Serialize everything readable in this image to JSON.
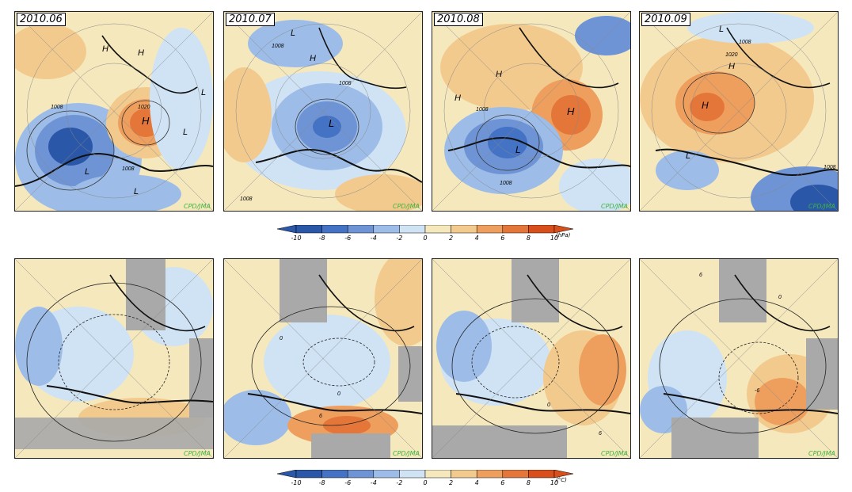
{
  "top_row": {
    "panels": [
      {
        "label": "2010.06",
        "credit": "CPD/JMA"
      },
      {
        "label": "2010.07",
        "credit": "CPD/JMA"
      },
      {
        "label": "2010.08",
        "credit": "CPD/JMA"
      },
      {
        "label": "2010.09",
        "credit": "CPD/JMA"
      }
    ],
    "colorbar": {
      "ticks": [
        "-10",
        "-8",
        "-6",
        "-4",
        "-2",
        "0",
        "2",
        "4",
        "6",
        "8",
        "10"
      ],
      "unit": "(hPa)"
    }
  },
  "bottom_row": {
    "panels": [
      {
        "credit": "CPD/JMA"
      },
      {
        "credit": "CPD/JMA"
      },
      {
        "credit": "CPD/JMA"
      },
      {
        "credit": "CPD/JMA"
      }
    ],
    "colorbar": {
      "ticks": [
        "-10",
        "-8",
        "-6",
        "-4",
        "-2",
        "0",
        "2",
        "4",
        "6",
        "8",
        "10"
      ],
      "unit": "(°C)"
    }
  },
  "map_labels": {
    "p1": [
      "H",
      "H",
      "H",
      "L",
      "L",
      "L",
      "L",
      "1008",
      "1020",
      "1008"
    ],
    "p2": [
      "H",
      "L",
      "1008",
      "1008",
      "1008",
      "L"
    ],
    "p3": [
      "H",
      "H",
      "H",
      "L",
      "1008",
      "1008"
    ],
    "p4": [
      "L",
      "1008",
      "1020",
      "H",
      "H",
      "L",
      "1008"
    ],
    "p6": [
      "0",
      "0",
      "6"
    ],
    "p7": [
      "0",
      "6"
    ],
    "p8": [
      "0",
      "-6",
      "6"
    ]
  },
  "colors": {
    "scale": [
      "#2b57a8",
      "#4472c4",
      "#6e94d6",
      "#9dbde8",
      "#cfe3f5",
      "#f5e8bd",
      "#f3ca8d",
      "#ee9f5e",
      "#e5763a",
      "#d94f1c"
    ],
    "land_mask": "#a9a9a9",
    "credit": "#3cb43c"
  }
}
